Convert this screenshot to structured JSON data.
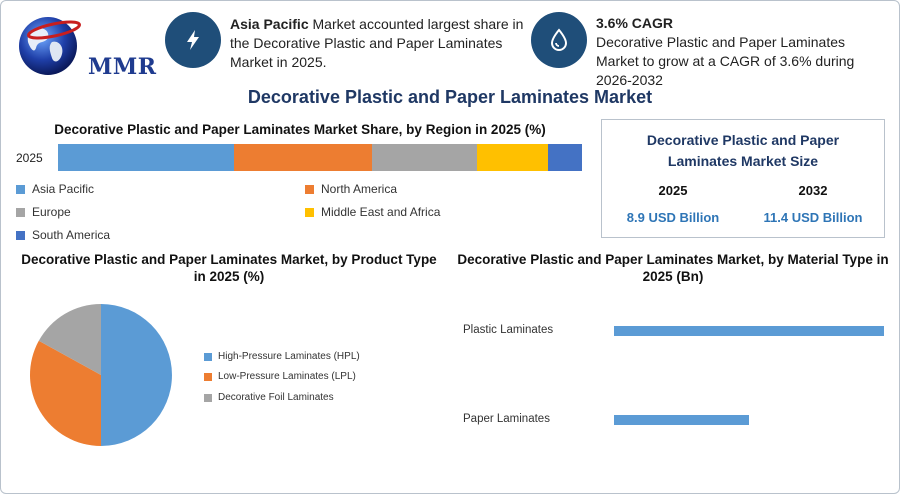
{
  "logo": {
    "text": "MMR"
  },
  "highlights": [
    {
      "icon": "lightning-bolt-icon",
      "bold": "Asia Pacific",
      "text": " Market accounted largest share in the Decorative Plastic and Paper Laminates Market in 2025."
    },
    {
      "icon": "droplet-icon",
      "bold": "3.6% CAGR",
      "text": "Decorative Plastic and Paper Laminates Market to grow at a CAGR of 3.6% during 2026-2032"
    }
  ],
  "main_title": "Decorative Plastic and Paper Laminates Market",
  "market_size": {
    "title": "Decorative Plastic and Paper Laminates Market Size",
    "years": [
      {
        "year": "2025",
        "value": "8.9 USD Billion"
      },
      {
        "year": "2032",
        "value": "11.4 USD Billion"
      }
    ]
  },
  "colors": {
    "asia_pacific": "#5b9bd5",
    "north_america": "#ed7d31",
    "europe": "#a5a5a5",
    "middle_east_africa": "#ffc000",
    "south_america": "#4472c4",
    "accent": "#1f4e79",
    "title": "#1f3864"
  },
  "chart_data": [
    {
      "type": "bar",
      "stacked": true,
      "orientation": "horizontal",
      "title": "Decorative Plastic and Paper Laminates Market Share, by Region in 2025 (%)",
      "categories": [
        "2025"
      ],
      "series": [
        {
          "name": "Asia Pacific",
          "values": [
            33.5
          ],
          "color": "#5b9bd5"
        },
        {
          "name": "North America",
          "values": [
            26.5
          ],
          "color": "#ed7d31"
        },
        {
          "name": "Europe",
          "values": [
            20
          ],
          "color": "#a5a5a5"
        },
        {
          "name": "Middle East and Africa",
          "values": [
            13.5
          ],
          "color": "#ffc000"
        },
        {
          "name": "South America",
          "values": [
            6.5
          ],
          "color": "#4472c4"
        }
      ],
      "legend_placement": "bottom"
    },
    {
      "type": "pie",
      "title": "Decorative Plastic and Paper Laminates Market, by Product Type in 2025 (%)",
      "categories": [
        "High-Pressure Laminates (HPL)",
        "Low-Pressure Laminates (LPL)",
        "Decorative Foil Laminates"
      ],
      "values": [
        50,
        33,
        17
      ],
      "colors": [
        "#5b9bd5",
        "#ed7d31",
        "#a5a5a5"
      ],
      "legend_placement": "right"
    },
    {
      "type": "bar",
      "orientation": "horizontal",
      "title": "Decorative Plastic and Paper Laminates Market, by Material Type in 2025 (Bn)",
      "categories": [
        "Plastic Laminates",
        "Paper Laminates"
      ],
      "values": [
        5.6,
        2.8
      ],
      "xlim": [
        0,
        5.6
      ],
      "color": "#5b9bd5",
      "grid": false
    }
  ]
}
